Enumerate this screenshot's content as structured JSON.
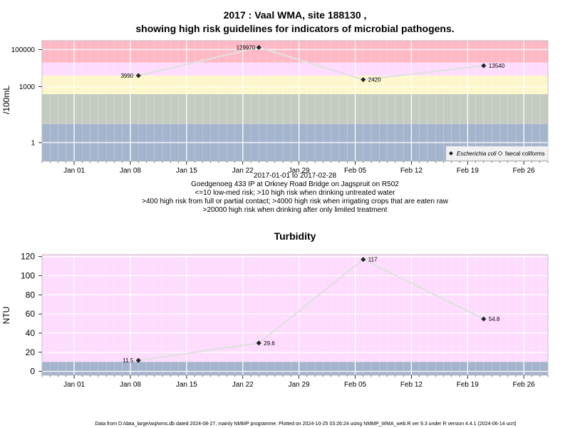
{
  "chart_data": [
    {
      "type": "line",
      "title_line1": "2017 : Vaal WMA, site 188130 ,",
      "title_line2": "showing high risk guidelines for indicators of microbial pathogens.",
      "ylabel": "/100mL",
      "yscale": "log",
      "ylim": [
        0.1,
        300000
      ],
      "yticks": [
        1,
        1000,
        100000
      ],
      "ytick_labels": [
        "1",
        "1000",
        "100000"
      ],
      "xlim": [
        "2016-12-28",
        "2017-03-01"
      ],
      "xticks": [
        "2017-01-01",
        "2017-01-08",
        "2017-01-15",
        "2017-01-22",
        "2017-01-29",
        "2017-02-05",
        "2017-02-12",
        "2017-02-19",
        "2017-02-26"
      ],
      "xtick_labels": [
        "Jan 01",
        "Jan 08",
        "Jan 15",
        "Jan 22",
        "Jan 29",
        "Feb 05",
        "Feb 12",
        "Feb 19",
        "Feb 26"
      ],
      "bands": [
        {
          "from": 0.1,
          "to": 10,
          "color": "#a3b4cc"
        },
        {
          "from": 10,
          "to": 400,
          "color": "#c4cbc1"
        },
        {
          "from": 400,
          "to": 4000,
          "color": "#fff7cc"
        },
        {
          "from": 4000,
          "to": 20000,
          "color": "#fedcfd"
        },
        {
          "from": 20000,
          "to": 300000,
          "color": "#ffb8c4"
        }
      ],
      "series": [
        {
          "name": "Escherichia coli",
          "color": "#e0e0e0",
          "points": [
            {
              "x": "2017-01-09",
              "y": 3990,
              "label": "3990"
            },
            {
              "x": "2017-01-24",
              "y": 129970,
              "label": "129970"
            },
            {
              "x": "2017-02-06",
              "y": 2420,
              "label": "2420"
            },
            {
              "x": "2017-02-21",
              "y": 13540,
              "label": "13540"
            }
          ]
        }
      ],
      "legend": {
        "placement": "bottom-right",
        "entries": [
          "Escherichia coli",
          "faecal coliforms"
        ]
      },
      "caption": [
        "2017-01-01 to 2017-02-28",
        "Goedgenoeg 433 IP at Orkney Road Bridge on Jagspruit on R502",
        "<=10 low-med risk; >10 high risk when drinking untreated water",
        ">400 high risk from full or partial contact; >4000 high risk when irrigating crops that are eaten raw",
        ">20000 high risk when drinking after only limited treatment"
      ]
    },
    {
      "type": "line",
      "title": "Turbidity",
      "ylabel": "NTU",
      "ylim": [
        -4,
        122
      ],
      "yticks": [
        0,
        20,
        40,
        60,
        80,
        100,
        120
      ],
      "ytick_labels": [
        "0",
        "20",
        "40",
        "60",
        "80",
        "100",
        "120"
      ],
      "xlim": [
        "2016-12-28",
        "2017-03-01"
      ],
      "xticks": [
        "2017-01-01",
        "2017-01-08",
        "2017-01-15",
        "2017-01-22",
        "2017-01-29",
        "2017-02-05",
        "2017-02-12",
        "2017-02-19",
        "2017-02-26"
      ],
      "xtick_labels": [
        "Jan 01",
        "Jan 08",
        "Jan 15",
        "Jan 22",
        "Jan 29",
        "Feb 05",
        "Feb 12",
        "Feb 19",
        "Feb 26"
      ],
      "bands": [
        {
          "from": -4,
          "to": 10,
          "color": "#a3b4cc"
        },
        {
          "from": 10,
          "to": 122,
          "color": "#fedcfd"
        }
      ],
      "series": [
        {
          "color": "#e0e0e0",
          "points": [
            {
              "x": "2017-01-09",
              "y": 11.5,
              "label": "11.5"
            },
            {
              "x": "2017-01-24",
              "y": 29.6,
              "label": "29.6"
            },
            {
              "x": "2017-02-06",
              "y": 117,
              "label": "117"
            },
            {
              "x": "2017-02-21",
              "y": 54.8,
              "label": "54.8"
            }
          ]
        }
      ]
    }
  ],
  "footer": "Data from D:/data_large/wq/wms.db dated 2024-08-27, mainly NMMP programme. Plotted on 2024-10-25 03:26:24 using NMMP_WMA_web.R ver 9.3 under R version 4.4.1 (2024-06-14 ucrt)"
}
